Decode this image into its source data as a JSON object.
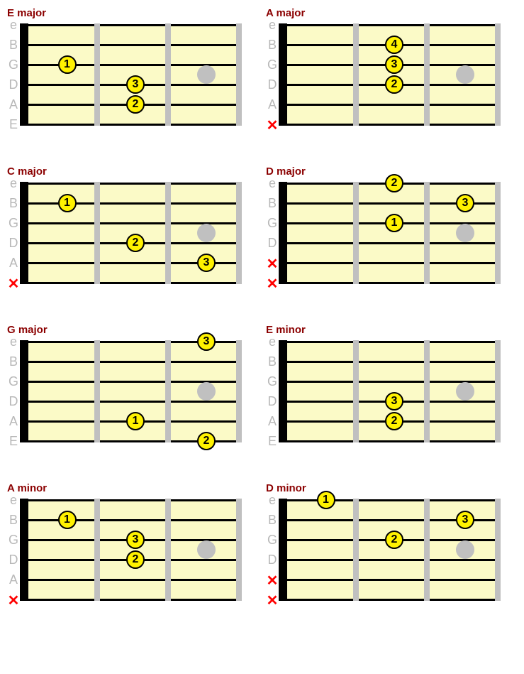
{
  "layout": {
    "columns": 2,
    "stringSpacing": 28,
    "fretWidth": 100,
    "numStrings": 6,
    "numFrets": 3
  },
  "colors": {
    "title": "#8b0000",
    "fretboard": "#fbfac7",
    "stringLabel": "#b8b8b8",
    "nut": "#000000",
    "fret": "#c0c0c0",
    "string": "#000000",
    "fingerFill": "#fff200",
    "fingerBorder": "#000000",
    "dotMarker": "#c0c0c0",
    "mute": "#ff0000",
    "background": "#ffffff"
  },
  "stringLabels": [
    "e",
    "B",
    "G",
    "D",
    "A",
    "E"
  ],
  "chords": [
    {
      "name": "E major",
      "mutes": [],
      "fingers": [
        {
          "string": 3,
          "fret": 1,
          "label": "1"
        },
        {
          "string": 4,
          "fret": 2,
          "label": "3"
        },
        {
          "string": 5,
          "fret": 2,
          "label": "2"
        }
      ],
      "dotMarker": {
        "fret": 3,
        "string": 3.5
      }
    },
    {
      "name": "A major",
      "mutes": [
        6
      ],
      "fingers": [
        {
          "string": 2,
          "fret": 2,
          "label": "4"
        },
        {
          "string": 3,
          "fret": 2,
          "label": "3"
        },
        {
          "string": 4,
          "fret": 2,
          "label": "2"
        }
      ],
      "dotMarker": {
        "fret": 3,
        "string": 3.5
      }
    },
    {
      "name": "C major",
      "mutes": [
        6
      ],
      "fingers": [
        {
          "string": 2,
          "fret": 1,
          "label": "1"
        },
        {
          "string": 4,
          "fret": 2,
          "label": "2"
        },
        {
          "string": 5,
          "fret": 3,
          "label": "3"
        }
      ],
      "dotMarker": {
        "fret": 3,
        "string": 3.5
      }
    },
    {
      "name": "D major",
      "mutes": [
        5,
        6
      ],
      "fingers": [
        {
          "string": 1,
          "fret": 2,
          "label": "2"
        },
        {
          "string": 2,
          "fret": 3,
          "label": "3"
        },
        {
          "string": 3,
          "fret": 2,
          "label": "1"
        }
      ],
      "dotMarker": {
        "fret": 3,
        "string": 3.5
      }
    },
    {
      "name": "G major",
      "mutes": [],
      "fingers": [
        {
          "string": 1,
          "fret": 3,
          "label": "3"
        },
        {
          "string": 5,
          "fret": 2,
          "label": "1"
        },
        {
          "string": 6,
          "fret": 3,
          "label": "2"
        }
      ],
      "dotMarker": {
        "fret": 3,
        "string": 3.5
      }
    },
    {
      "name": "E minor",
      "mutes": [],
      "fingers": [
        {
          "string": 4,
          "fret": 2,
          "label": "3"
        },
        {
          "string": 5,
          "fret": 2,
          "label": "2"
        }
      ],
      "dotMarker": {
        "fret": 3,
        "string": 3.5
      }
    },
    {
      "name": "A minor",
      "mutes": [
        6
      ],
      "fingers": [
        {
          "string": 2,
          "fret": 1,
          "label": "1"
        },
        {
          "string": 3,
          "fret": 2,
          "label": "3"
        },
        {
          "string": 4,
          "fret": 2,
          "label": "2"
        }
      ],
      "dotMarker": {
        "fret": 3,
        "string": 3.5
      }
    },
    {
      "name": "D minor",
      "mutes": [
        5,
        6
      ],
      "fingers": [
        {
          "string": 1,
          "fret": 1,
          "label": "1"
        },
        {
          "string": 2,
          "fret": 3,
          "label": "3"
        },
        {
          "string": 3,
          "fret": 2,
          "label": "2"
        }
      ],
      "dotMarker": {
        "fret": 3,
        "string": 3.5
      }
    }
  ]
}
